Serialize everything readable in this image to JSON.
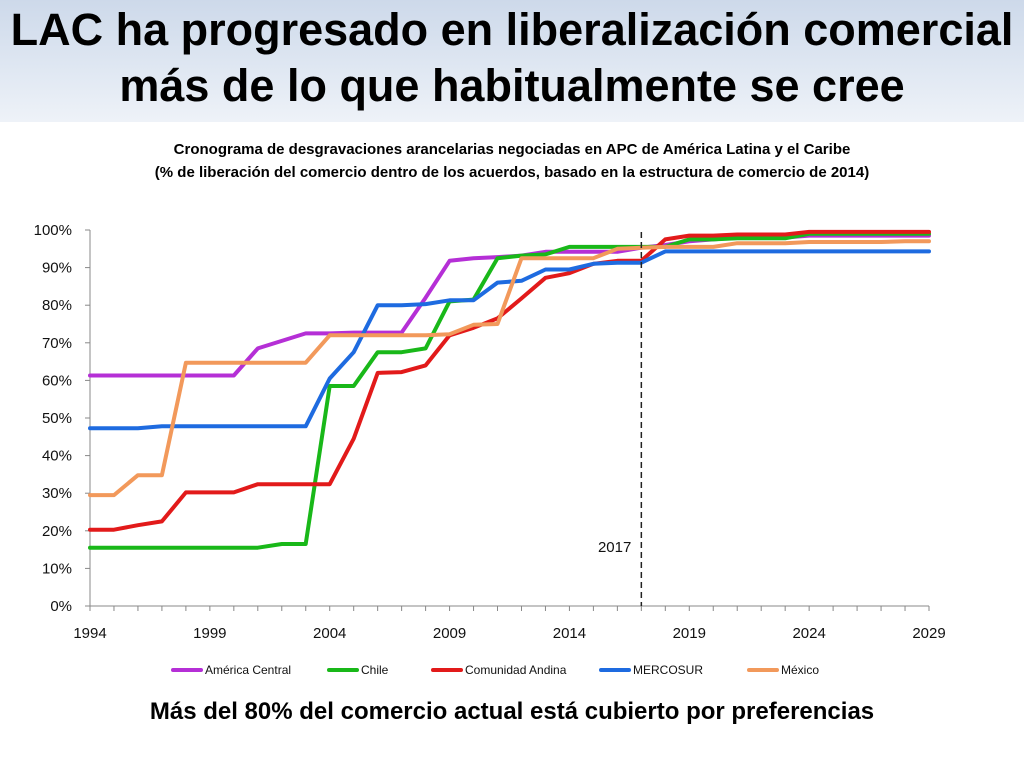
{
  "slide": {
    "title_line1": "LAC ha progresado en liberalización comercial",
    "title_line2": "más de lo que habitualmente se cree",
    "footer": "Más del 80% del comercio actual está cubierto por preferencias"
  },
  "chart_data": {
    "type": "line",
    "title": "Cronograma de desgravaciones arancelarias negociadas en APC de América Latina y el Caribe",
    "subtitle": "(% de liberación del comercio dentro de los acuerdos, basado en la estructura de comercio de 2014)",
    "x": [
      1994,
      1995,
      1996,
      1997,
      1998,
      1999,
      2000,
      2001,
      2002,
      2003,
      2004,
      2005,
      2006,
      2007,
      2008,
      2009,
      2010,
      2011,
      2012,
      2013,
      2014,
      2015,
      2016,
      2017,
      2018,
      2019,
      2020,
      2021,
      2022,
      2023,
      2024,
      2025,
      2026,
      2027,
      2028,
      2029
    ],
    "xlim": [
      1994,
      2029
    ],
    "x_ticks": [
      1994,
      1999,
      2004,
      2009,
      2014,
      2019,
      2024,
      2029
    ],
    "ylim": [
      0,
      100
    ],
    "y_ticks": [
      "0%",
      "10%",
      "20%",
      "30%",
      "40%",
      "50%",
      "60%",
      "70%",
      "80%",
      "90%",
      "100%"
    ],
    "grid": false,
    "legend_position": "bottom",
    "annotation": {
      "label": "2017",
      "x": 2017,
      "style": "dashed vertical line"
    },
    "series": [
      {
        "name": "América Central",
        "color": "#b52fd6",
        "values": [
          61.3,
          61.3,
          61.3,
          61.3,
          61.3,
          61.3,
          61.3,
          68.5,
          70.5,
          72.5,
          72.5,
          72.7,
          72.7,
          72.7,
          82,
          91.8,
          92.5,
          92.8,
          93.2,
          94.2,
          94.2,
          94.2,
          94.2,
          95.3,
          96,
          97,
          97.5,
          98,
          98,
          98,
          98.5,
          98.5,
          98.5,
          98.5,
          98.5,
          98.5
        ]
      },
      {
        "name": "Chile",
        "color": "#19b819",
        "values": [
          15.5,
          15.5,
          15.5,
          15.5,
          15.5,
          15.5,
          15.5,
          15.5,
          16.5,
          16.5,
          58.5,
          58.5,
          67.5,
          67.5,
          68.5,
          81,
          81.5,
          92.5,
          93.2,
          93.5,
          95.5,
          95.5,
          95.5,
          95.5,
          95.5,
          97.5,
          97.5,
          97.8,
          97.8,
          97.8,
          99,
          99,
          99,
          99,
          99,
          99
        ]
      },
      {
        "name": "Comunidad Andina",
        "color": "#e21a1a",
        "values": [
          20.3,
          20.3,
          21.5,
          22.5,
          30.2,
          30.2,
          30.2,
          32.4,
          32.4,
          32.4,
          32.4,
          44.5,
          62,
          62.2,
          64,
          72,
          74,
          76.5,
          81.8,
          87.3,
          88.5,
          91,
          91.8,
          91.8,
          97.5,
          98.5,
          98.5,
          98.8,
          98.8,
          98.8,
          99.5,
          99.5,
          99.5,
          99.5,
          99.5,
          99.5
        ]
      },
      {
        "name": "MERCOSUR",
        "color": "#1e6be0",
        "values": [
          47.3,
          47.3,
          47.3,
          47.8,
          47.8,
          47.8,
          47.8,
          47.8,
          47.8,
          47.8,
          60.5,
          67.5,
          80,
          80,
          80.3,
          81.3,
          81.3,
          86,
          86.5,
          89.5,
          89.5,
          91,
          91.3,
          91.3,
          94.3,
          94.3,
          94.3,
          94.3,
          94.3,
          94.3,
          94.3,
          94.3,
          94.3,
          94.3,
          94.3,
          94.3
        ]
      },
      {
        "name": "México",
        "color": "#f2995b",
        "values": [
          29.5,
          29.5,
          34.8,
          34.8,
          64.7,
          64.7,
          64.7,
          64.7,
          64.7,
          64.7,
          72,
          72,
          72,
          72,
          72,
          72.3,
          74.8,
          75,
          92.5,
          92.5,
          92.5,
          92.5,
          95,
          95.3,
          95.5,
          95.5,
          95.5,
          96.5,
          96.5,
          96.5,
          96.8,
          96.8,
          96.8,
          96.8,
          97,
          97
        ]
      }
    ]
  }
}
